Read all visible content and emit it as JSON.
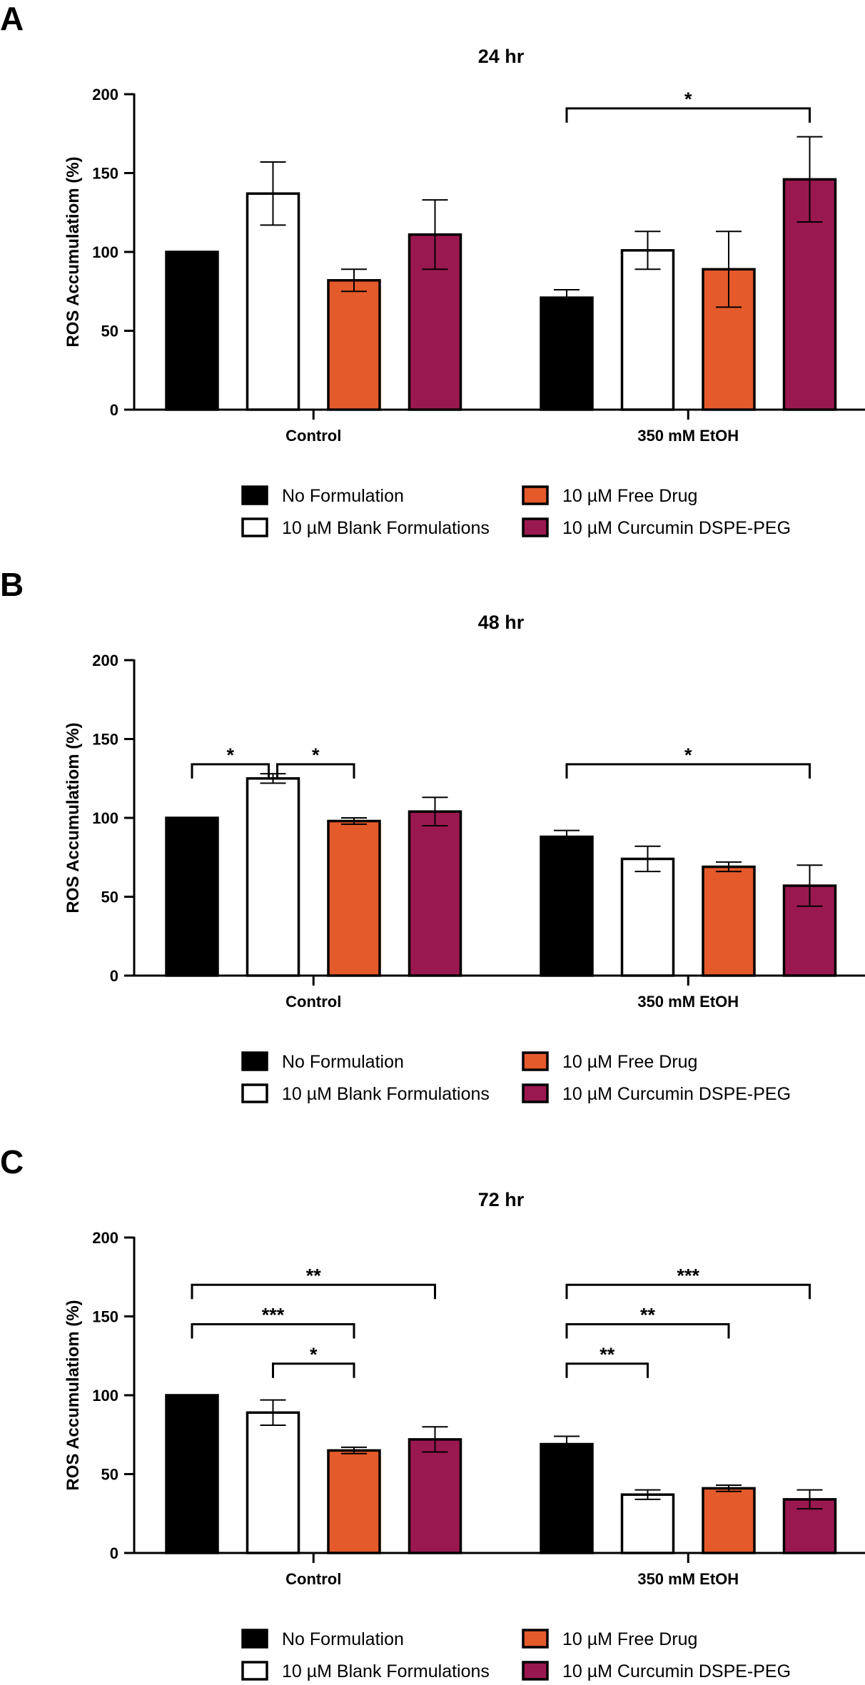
{
  "legend": [
    {
      "label": "No Formulation",
      "color": "#000000"
    },
    {
      "label": "10 µM Blank Formulations",
      "color": "#ffffff"
    },
    {
      "label": "10 µM Free Drug",
      "color": "#e55a2b"
    },
    {
      "label": "10 µM Curcumin DSPE-PEG",
      "color": "#9a1850"
    }
  ],
  "chart_data": [
    {
      "type": "bar",
      "panel": "A",
      "title": "24 hr",
      "ylabel": "ROS Accumulatiom (%)",
      "ylim": [
        0,
        200
      ],
      "yticks": [
        0,
        50,
        100,
        150,
        200
      ],
      "categories": [
        "Control",
        "350 mM EtOH"
      ],
      "series": [
        {
          "name": "No Formulation",
          "values": [
            100,
            71
          ],
          "errors": [
            0,
            5
          ]
        },
        {
          "name": "10 µM Blank Formulations",
          "values": [
            137,
            101
          ],
          "errors": [
            20,
            12
          ]
        },
        {
          "name": "10 µM Free Drug",
          "values": [
            82,
            89
          ],
          "errors": [
            7,
            24
          ]
        },
        {
          "name": "10 µM Curcumin DSPE-PEG",
          "values": [
            111,
            146
          ],
          "errors": [
            22,
            27
          ]
        }
      ],
      "significance": [
        {
          "group": 1,
          "from": 0,
          "to": 3,
          "y": 191,
          "label": "*"
        }
      ],
      "grid": false,
      "legend_position": "bottom"
    },
    {
      "type": "bar",
      "panel": "B",
      "title": "48 hr",
      "ylabel": "ROS Accumulatiom (%)",
      "ylim": [
        0,
        200
      ],
      "yticks": [
        0,
        50,
        100,
        150,
        200
      ],
      "categories": [
        "Control",
        "350 mM EtOH"
      ],
      "series": [
        {
          "name": "No Formulation",
          "values": [
            100,
            88
          ],
          "errors": [
            0,
            4
          ]
        },
        {
          "name": "10 µM Blank Formulations",
          "values": [
            125,
            74
          ],
          "errors": [
            3,
            8
          ]
        },
        {
          "name": "10 µM Free Drug",
          "values": [
            98,
            69
          ],
          "errors": [
            2,
            3
          ]
        },
        {
          "name": "10 µM Curcumin DSPE-PEG",
          "values": [
            104,
            57
          ],
          "errors": [
            9,
            13
          ]
        }
      ],
      "significance": [
        {
          "group": 0,
          "from": 0,
          "to": 1,
          "y": 134,
          "label": "*"
        },
        {
          "group": 0,
          "from": 1,
          "to": 2,
          "y": 134,
          "label": "*"
        },
        {
          "group": 1,
          "from": 0,
          "to": 3,
          "y": 134,
          "label": "*"
        }
      ],
      "grid": false,
      "legend_position": "bottom"
    },
    {
      "type": "bar",
      "panel": "C",
      "title": "72 hr",
      "ylabel": "ROS Accumulatiom (%)",
      "ylim": [
        0,
        200
      ],
      "yticks": [
        0,
        50,
        100,
        150,
        200
      ],
      "categories": [
        "Control",
        "350 mM EtOH"
      ],
      "series": [
        {
          "name": "No Formulation",
          "values": [
            100,
            69
          ],
          "errors": [
            0,
            5
          ]
        },
        {
          "name": "10 µM Blank Formulations",
          "values": [
            89,
            37
          ],
          "errors": [
            8,
            3
          ]
        },
        {
          "name": "10 µM Free Drug",
          "values": [
            65,
            41
          ],
          "errors": [
            2,
            2
          ]
        },
        {
          "name": "10 µM Curcumin DSPE-PEG",
          "values": [
            72,
            34
          ],
          "errors": [
            8,
            6
          ]
        }
      ],
      "significance": [
        {
          "group": 0,
          "from": 0,
          "to": 3,
          "y": 170,
          "label": "**"
        },
        {
          "group": 0,
          "from": 0,
          "to": 2,
          "y": 145,
          "label": "***"
        },
        {
          "group": 0,
          "from": 1,
          "to": 2,
          "y": 120,
          "label": "*"
        },
        {
          "group": 1,
          "from": 0,
          "to": 3,
          "y": 170,
          "label": "***"
        },
        {
          "group": 1,
          "from": 0,
          "to": 2,
          "y": 145,
          "label": "**"
        },
        {
          "group": 1,
          "from": 0,
          "to": 1,
          "y": 120,
          "label": "**"
        }
      ],
      "grid": false,
      "legend_position": "bottom"
    }
  ]
}
